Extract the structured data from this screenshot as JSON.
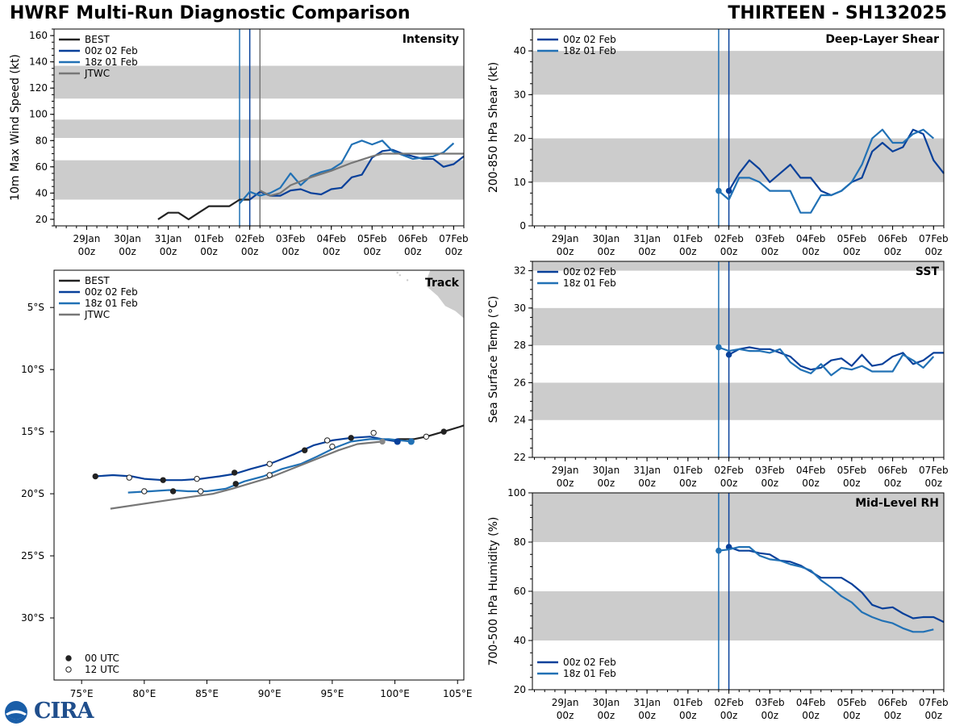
{
  "header": {
    "title_left": "HWRF Multi-Run Diagnostic Comparison",
    "title_right": "THIRTEEN - SH132025"
  },
  "logo": {
    "text": "CIRA",
    "icon": "noaa-globe-icon"
  },
  "colors": {
    "best": "#222222",
    "run00": "#08409a",
    "run18": "#2171b5",
    "jtwc": "#777777",
    "band": "#cccccc",
    "land": "#cccccc"
  },
  "time_axis": {
    "ticks": [
      {
        "t": -4,
        "label": "29Jan\n00z"
      },
      {
        "t": -3,
        "label": "30Jan\n00z"
      },
      {
        "t": -2,
        "label": "31Jan\n00z"
      },
      {
        "t": -1,
        "label": "01Feb\n00z"
      },
      {
        "t": 0,
        "label": "02Feb\n00z"
      },
      {
        "t": 1,
        "label": "03Feb\n00z"
      },
      {
        "t": 2,
        "label": "04Feb\n00z"
      },
      {
        "t": 3,
        "label": "05Feb\n00z"
      },
      {
        "t": 4,
        "label": "06Feb\n00z"
      },
      {
        "t": 5,
        "label": "07Feb\n00z"
      }
    ]
  },
  "chart_data": [
    {
      "id": "intensity",
      "type": "line",
      "panel_title": "Intensity",
      "ylabel": "10m Max Wind Speed (kt)",
      "xlim": [
        -4.8,
        5.25
      ],
      "ylim": [
        15,
        165
      ],
      "yticks": [
        20,
        40,
        60,
        80,
        100,
        120,
        140,
        160
      ],
      "bands": [
        [
          35,
          65
        ],
        [
          82,
          96
        ],
        [
          112,
          137
        ]
      ],
      "vlines": [
        {
          "t": -0.25,
          "color": "run18"
        },
        {
          "t": 0.0,
          "color": "run00"
        },
        {
          "t": 0.25,
          "color": "jtwc"
        }
      ],
      "legend": [
        "BEST",
        "00z 02 Feb",
        "18z 01 Feb",
        "JTWC"
      ],
      "series": [
        {
          "name": "BEST",
          "color": "best",
          "t": [
            -2.25,
            -2.0,
            -1.75,
            -1.5,
            -1.25,
            -1.0,
            -0.75,
            -0.5,
            -0.25,
            0.0
          ],
          "v": [
            20,
            25,
            25,
            20,
            25,
            30,
            30,
            30,
            35,
            35
          ]
        },
        {
          "name": "00z 02 Feb",
          "color": "run00",
          "t": [
            0.0,
            0.25,
            0.5,
            0.75,
            1.0,
            1.25,
            1.5,
            1.75,
            2.0,
            2.25,
            2.5,
            2.75,
            3.0,
            3.25,
            3.5,
            3.75,
            4.0,
            4.25,
            4.5,
            4.75,
            5.0,
            5.25
          ],
          "v": [
            35,
            41,
            38,
            38,
            42,
            43,
            40,
            39,
            43,
            44,
            52,
            54,
            67,
            72,
            73,
            70,
            68,
            66,
            66,
            60,
            62,
            68
          ]
        },
        {
          "name": "18z 01 Feb",
          "color": "run18",
          "t": [
            -0.25,
            0.0,
            0.25,
            0.5,
            0.75,
            1.0,
            1.25,
            1.5,
            1.75,
            2.0,
            2.25,
            2.5,
            2.75,
            3.0,
            3.25,
            3.5,
            3.75,
            4.0,
            4.25,
            4.5,
            4.75,
            5.0
          ],
          "v": [
            32,
            41,
            38,
            40,
            44,
            55,
            46,
            53,
            56,
            58,
            63,
            77,
            80,
            77,
            80,
            72,
            69,
            66,
            67,
            68,
            71,
            78
          ]
        },
        {
          "name": "JTWC",
          "color": "jtwc",
          "t": [
            0.25,
            0.5,
            0.75,
            1.0,
            1.5,
            2.0,
            2.5,
            3.0,
            3.25,
            3.5,
            4.0,
            5.25
          ],
          "v": [
            42,
            38,
            40,
            46,
            52,
            57,
            63,
            68,
            70,
            70,
            70,
            70
          ]
        }
      ]
    },
    {
      "id": "shear",
      "type": "line",
      "panel_title": "Deep-Layer Shear",
      "ylabel": "200-850 hPa Shear (kt)",
      "xlim": [
        -4.8,
        5.25
      ],
      "ylim": [
        0,
        45
      ],
      "yticks": [
        0,
        10,
        20,
        30,
        40
      ],
      "bands": [
        [
          10,
          20
        ],
        [
          30,
          40
        ]
      ],
      "vlines": [
        {
          "t": -0.25,
          "color": "run18"
        },
        {
          "t": 0.0,
          "color": "run00"
        }
      ],
      "legend": [
        "00z 02 Feb",
        "18z 01 Feb"
      ],
      "series": [
        {
          "name": "00z 02 Feb",
          "color": "run00",
          "t": [
            0.0,
            0.25,
            0.5,
            0.75,
            1.0,
            1.25,
            1.5,
            1.75,
            2.0,
            2.25,
            2.5,
            2.75,
            3.0,
            3.25,
            3.5,
            3.75,
            4.0,
            4.25,
            4.5,
            4.75,
            5.0,
            5.25
          ],
          "v": [
            8,
            12,
            15,
            13,
            10,
            12,
            14,
            11,
            11,
            8,
            7,
            8,
            10,
            11,
            17,
            19,
            17,
            18,
            22,
            21,
            15,
            12
          ]
        },
        {
          "name": "18z 01 Feb",
          "color": "run18",
          "t": [
            -0.25,
            0.0,
            0.25,
            0.5,
            0.75,
            1.0,
            1.25,
            1.5,
            1.75,
            2.0,
            2.25,
            2.5,
            2.75,
            3.0,
            3.25,
            3.5,
            3.75,
            4.0,
            4.25,
            4.5,
            4.75,
            5.0
          ],
          "v": [
            8,
            6,
            11,
            11,
            10,
            8,
            8,
            8,
            3,
            3,
            7,
            7,
            8,
            10,
            14,
            20,
            22,
            19,
            19,
            21,
            22,
            20
          ]
        }
      ]
    },
    {
      "id": "sst",
      "type": "line",
      "panel_title": "SST",
      "ylabel": "Sea Surface Temp (°C)",
      "xlim": [
        -4.8,
        5.25
      ],
      "ylim": [
        22,
        32.5
      ],
      "yticks": [
        22,
        24,
        26,
        28,
        30,
        32
      ],
      "bands": [
        [
          24,
          26
        ],
        [
          28,
          30
        ],
        [
          32,
          32.5
        ]
      ],
      "vlines": [
        {
          "t": -0.25,
          "color": "run18"
        },
        {
          "t": 0.0,
          "color": "run00"
        }
      ],
      "legend": [
        "00z 02 Feb",
        "18z 01 Feb"
      ],
      "series": [
        {
          "name": "00z 02 Feb",
          "color": "run00",
          "t": [
            0.0,
            0.25,
            0.5,
            0.75,
            1.0,
            1.25,
            1.5,
            1.75,
            2.0,
            2.25,
            2.5,
            2.75,
            3.0,
            3.25,
            3.5,
            3.75,
            4.0,
            4.25,
            4.5,
            4.75,
            5.0,
            5.25
          ],
          "v": [
            27.5,
            27.8,
            27.9,
            27.8,
            27.8,
            27.6,
            27.4,
            26.9,
            26.7,
            26.8,
            27.2,
            27.3,
            26.9,
            27.5,
            26.9,
            27.0,
            27.4,
            27.6,
            27.0,
            27.2,
            27.6,
            27.6
          ]
        },
        {
          "name": "18z 01 Feb",
          "color": "run18",
          "t": [
            -0.25,
            0.0,
            0.25,
            0.5,
            0.75,
            1.0,
            1.25,
            1.5,
            1.75,
            2.0,
            2.25,
            2.5,
            2.75,
            3.0,
            3.25,
            3.5,
            3.75,
            4.0,
            4.25,
            4.5,
            4.75,
            5.0
          ],
          "v": [
            27.9,
            27.7,
            27.8,
            27.7,
            27.7,
            27.6,
            27.8,
            27.1,
            26.7,
            26.5,
            27.0,
            26.4,
            26.8,
            26.7,
            26.9,
            26.6,
            26.6,
            26.6,
            27.5,
            27.2,
            26.8,
            27.4
          ]
        }
      ]
    },
    {
      "id": "rh",
      "type": "line",
      "panel_title": "Mid-Level RH",
      "ylabel": "700-500 hPa Humidity (%)",
      "xlim": [
        -4.8,
        5.25
      ],
      "ylim": [
        20,
        100
      ],
      "yticks": [
        20,
        40,
        60,
        80,
        100
      ],
      "bands": [
        [
          40,
          60
        ],
        [
          80,
          100
        ]
      ],
      "vlines": [
        {
          "t": -0.25,
          "color": "run18"
        },
        {
          "t": 0.0,
          "color": "run00"
        }
      ],
      "legend": [
        "00z 02 Feb",
        "18z 01 Feb"
      ],
      "legend_position": "bottom-left",
      "series": [
        {
          "name": "00z 02 Feb",
          "color": "run00",
          "t": [
            0.0,
            0.25,
            0.5,
            0.75,
            1.0,
            1.25,
            1.5,
            1.75,
            2.0,
            2.25,
            2.5,
            2.75,
            3.0,
            3.25,
            3.5,
            3.75,
            4.0,
            4.25,
            4.5,
            4.75,
            5.0,
            5.25
          ],
          "v": [
            78,
            76.5,
            76.5,
            75.5,
            75,
            72.5,
            72,
            70.5,
            68,
            65.5,
            65.5,
            65.5,
            63,
            59.5,
            54.5,
            53,
            53.5,
            51,
            49,
            49.5,
            49.5,
            47.5
          ]
        },
        {
          "name": "18z 01 Feb",
          "color": "run18",
          "t": [
            -0.25,
            0.0,
            0.25,
            0.5,
            0.75,
            1.0,
            1.25,
            1.5,
            1.75,
            2.0,
            2.25,
            2.5,
            2.75,
            3.0,
            3.25,
            3.5,
            3.75,
            4.0,
            4.25,
            4.5,
            4.75,
            5.0
          ],
          "v": [
            76.5,
            77,
            78,
            78,
            74.5,
            73,
            72.5,
            71,
            70,
            68.5,
            64.5,
            61.5,
            58,
            55.5,
            51.5,
            49.5,
            48,
            47,
            45,
            43.5,
            43.5,
            44.5
          ]
        }
      ]
    },
    {
      "id": "track",
      "type": "scatter",
      "panel_title": "Track",
      "xlim": [
        72.8,
        105.5
      ],
      "ylim": [
        -35,
        -2
      ],
      "xticks": [
        75,
        80,
        85,
        90,
        95,
        100,
        105
      ],
      "xticklabels": [
        "75°E",
        "80°E",
        "85°E",
        "90°E",
        "95°E",
        "100°E",
        "105°E"
      ],
      "yticks": [
        -5,
        -10,
        -15,
        -20,
        -25,
        -30
      ],
      "yticklabels": [
        "5°S",
        "10°S",
        "15°S",
        "20°S",
        "25°S",
        "30°S"
      ],
      "legend": [
        "BEST",
        "00z 02 Feb",
        "18z 01 Feb",
        "JTWC"
      ],
      "marker_legend": [
        "00 UTC",
        "12 UTC"
      ],
      "series": [
        {
          "name": "BEST",
          "color": "best",
          "lon": [
            100.2,
            101.5,
            102.5,
            103.9,
            105.2,
            105.5
          ],
          "lat": [
            -15.6,
            -15.6,
            -15.4,
            -15.0,
            -14.6,
            -14.5
          ],
          "markers": [
            {
              "lon": 103.9,
              "lat": -15.0,
              "kind": "00"
            },
            {
              "lon": 102.5,
              "lat": -15.4,
              "kind": "12"
            }
          ]
        },
        {
          "name": "00z 02 Feb",
          "color": "run00",
          "lon": [
            100.2,
            99.0,
            98.0,
            96.5,
            95.0,
            93.5,
            92.0,
            91.0,
            90.0,
            88.5,
            87.2,
            86.0,
            84.5,
            83.0,
            81.5,
            80.0,
            79.0,
            77.5,
            76.1
          ],
          "lat": [
            -15.8,
            -15.6,
            -15.4,
            -15.5,
            -15.7,
            -16.1,
            -16.8,
            -17.2,
            -17.6,
            -18.0,
            -18.4,
            -18.6,
            -18.8,
            -18.9,
            -18.9,
            -18.8,
            -18.6,
            -18.5,
            -18.6
          ],
          "markers": [
            {
              "lon": 100.2,
              "lat": -15.8,
              "kind": "00f"
            },
            {
              "lon": 98.3,
              "lat": -15.1,
              "kind": "12"
            },
            {
              "lon": 96.5,
              "lat": -15.5,
              "kind": "00"
            },
            {
              "lon": 94.6,
              "lat": -15.7,
              "kind": "12"
            },
            {
              "lon": 92.8,
              "lat": -16.5,
              "kind": "00"
            },
            {
              "lon": 90.0,
              "lat": -17.6,
              "kind": "12"
            },
            {
              "lon": 87.2,
              "lat": -18.3,
              "kind": "00"
            },
            {
              "lon": 84.2,
              "lat": -18.8,
              "kind": "12"
            },
            {
              "lon": 81.5,
              "lat": -18.9,
              "kind": "00"
            },
            {
              "lon": 78.8,
              "lat": -18.7,
              "kind": "12"
            },
            {
              "lon": 76.1,
              "lat": -18.6,
              "kind": "00"
            }
          ]
        },
        {
          "name": "18z 01 Feb",
          "color": "run18",
          "lon": [
            101.3,
            99.5,
            98.0,
            96.5,
            95.2,
            93.8,
            92.5,
            91.0,
            89.5,
            88.0,
            86.5,
            85.0,
            83.5,
            82.0,
            80.5,
            78.7
          ],
          "lat": [
            -15.8,
            -15.6,
            -15.6,
            -15.8,
            -16.3,
            -17.0,
            -17.6,
            -18.0,
            -18.6,
            -19.0,
            -19.6,
            -19.8,
            -19.8,
            -19.7,
            -19.8,
            -19.9
          ],
          "markers": [
            {
              "lon": 101.3,
              "lat": -15.8,
              "kind": "18"
            },
            {
              "lon": 95.0,
              "lat": -16.2,
              "kind": "12"
            },
            {
              "lon": 90.0,
              "lat": -18.5,
              "kind": "12"
            },
            {
              "lon": 87.3,
              "lat": -19.2,
              "kind": "00"
            },
            {
              "lon": 84.5,
              "lat": -19.8,
              "kind": "12"
            },
            {
              "lon": 82.3,
              "lat": -19.8,
              "kind": "00"
            },
            {
              "lon": 80.0,
              "lat": -19.8,
              "kind": "12"
            }
          ]
        },
        {
          "name": "JTWC",
          "color": "jtwc",
          "lon": [
            99.0,
            97.0,
            95.5,
            93.0,
            90.0,
            87.0,
            85.5,
            82.0,
            77.3
          ],
          "lat": [
            -15.8,
            -16.0,
            -16.5,
            -17.5,
            -18.7,
            -19.6,
            -20.0,
            -20.5,
            -21.2
          ],
          "markers": [
            {
              "lon": 99.0,
              "lat": -15.8,
              "kind": "jtwc"
            }
          ]
        }
      ]
    }
  ]
}
